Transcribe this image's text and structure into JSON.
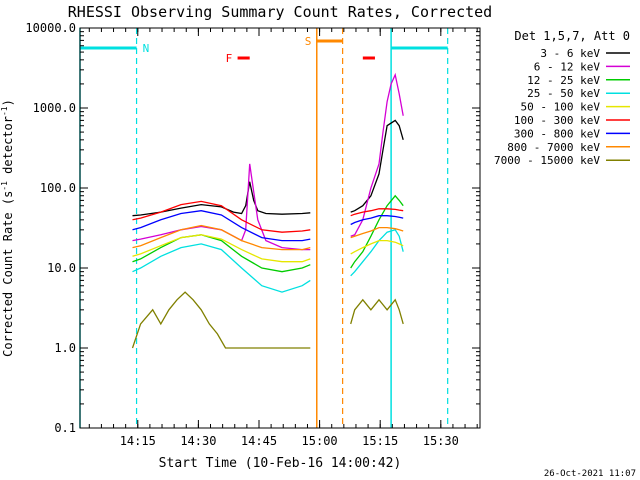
{
  "chart_data": {
    "type": "line",
    "title": "RHESSI Observing Summary Count Rates, Corrected",
    "xlabel": "Start Time (10-Feb-16 14:00:42)",
    "ylabel_main": "Corrected Count Rate (s",
    "ylabel_sup": "-1",
    "ylabel_tail": " detector",
    "ylabel_end": ")",
    "y_scale": "log",
    "ylim": [
      0.1,
      10000
    ],
    "xlim_minutes": [
      0,
      99
    ],
    "x_ticks": [
      {
        "label": "14:15",
        "min": 14.3
      },
      {
        "label": "14:30",
        "min": 29.3
      },
      {
        "label": "14:45",
        "min": 44.3
      },
      {
        "label": "15:00",
        "min": 59.3
      },
      {
        "label": "15:15",
        "min": 74.3
      },
      {
        "label": "15:30",
        "min": 89.3
      }
    ],
    "y_ticks": [
      {
        "label": "10000.0",
        "value": 10000
      },
      {
        "label": "1000.0",
        "value": 1000
      },
      {
        "label": "100.0",
        "value": 100
      },
      {
        "label": "10.0",
        "value": 10
      },
      {
        "label": "1.0",
        "value": 1
      },
      {
        "label": "0.1",
        "value": 0.1
      }
    ],
    "legend_header": "Det 1,5,7, Att 0",
    "legend_position": "right",
    "footer_date": "26-Oct-2021 11:07",
    "series": [
      {
        "name": "3 - 6 keV",
        "color": "#000000",
        "x": [
          13,
          15,
          20,
          25,
          30,
          35,
          38,
          40,
          41,
          42,
          43,
          44,
          46,
          50,
          55,
          57
        ],
        "y": [
          45,
          46,
          50,
          56,
          62,
          58,
          50,
          48,
          60,
          120,
          70,
          52,
          48,
          47,
          48,
          49
        ],
        "x2": [
          67,
          68,
          70,
          72,
          74,
          75,
          76,
          78,
          79,
          80
        ],
        "y2": [
          50,
          52,
          60,
          80,
          150,
          300,
          600,
          700,
          600,
          400
        ]
      },
      {
        "name": "6 - 12 keV",
        "color": "#d400d4",
        "x": [
          13,
          15,
          20,
          25,
          30,
          35,
          38,
          40,
          41,
          42,
          43,
          44,
          46,
          50,
          55,
          57
        ],
        "y": [
          22,
          23,
          26,
          30,
          33,
          30,
          25,
          22,
          30,
          200,
          90,
          40,
          22,
          18,
          17,
          17
        ],
        "x2": [
          67,
          68,
          70,
          72,
          74,
          75,
          76,
          77,
          78,
          79,
          80
        ],
        "y2": [
          25,
          26,
          40,
          100,
          200,
          500,
          1200,
          2000,
          2600,
          1500,
          800
        ]
      },
      {
        "name": "12 - 25 keV",
        "color": "#00cc00",
        "x": [
          13,
          15,
          20,
          25,
          30,
          35,
          40,
          45,
          50,
          55,
          57
        ],
        "y": [
          12,
          13,
          18,
          24,
          26,
          22,
          14,
          10,
          9,
          10,
          11
        ],
        "x2": [
          67,
          68,
          70,
          72,
          74,
          76,
          78,
          79,
          80
        ],
        "y2": [
          10,
          12,
          16,
          25,
          40,
          60,
          80,
          70,
          60
        ]
      },
      {
        "name": "25 - 50 keV",
        "color": "#00e0e0",
        "x": [
          13,
          15,
          20,
          25,
          30,
          35,
          40,
          45,
          50,
          55,
          57
        ],
        "y": [
          9,
          10,
          14,
          18,
          20,
          17,
          10,
          6,
          5,
          6,
          7
        ],
        "x2": [
          67,
          68,
          70,
          72,
          74,
          76,
          78,
          79,
          80
        ],
        "y2": [
          8,
          9,
          12,
          16,
          22,
          28,
          30,
          25,
          16
        ]
      },
      {
        "name": "50 - 100 keV",
        "color": "#e6e600",
        "x": [
          13,
          15,
          20,
          25,
          30,
          35,
          40,
          45,
          50,
          55,
          57
        ],
        "y": [
          14,
          15,
          19,
          24,
          26,
          23,
          17,
          13,
          12,
          12,
          13
        ],
        "x2": [
          67,
          68,
          70,
          72,
          74,
          76,
          78,
          79,
          80
        ],
        "y2": [
          15,
          16,
          18,
          20,
          22,
          22,
          21,
          20,
          19
        ]
      },
      {
        "name": "100 - 300 keV",
        "color": "#ff0000",
        "x": [
          13,
          15,
          20,
          25,
          30,
          35,
          40,
          45,
          50,
          55,
          57
        ],
        "y": [
          40,
          42,
          50,
          62,
          68,
          60,
          40,
          30,
          28,
          29,
          30
        ],
        "x2": [
          67,
          68,
          70,
          72,
          74,
          76,
          78,
          79,
          80
        ],
        "y2": [
          45,
          47,
          50,
          52,
          55,
          55,
          54,
          53,
          52
        ]
      },
      {
        "name": "300 - 800 keV",
        "color": "#0000ff",
        "x": [
          13,
          15,
          20,
          25,
          30,
          35,
          40,
          45,
          50,
          55,
          57
        ],
        "y": [
          30,
          32,
          40,
          48,
          52,
          46,
          32,
          24,
          22,
          22,
          23
        ],
        "x2": [
          67,
          68,
          70,
          72,
          74,
          76,
          78,
          79,
          80
        ],
        "y2": [
          35,
          37,
          40,
          42,
          45,
          45,
          44,
          43,
          42
        ]
      },
      {
        "name": "800 - 7000 keV",
        "color": "#ff8800",
        "x": [
          13,
          15,
          20,
          25,
          30,
          35,
          40,
          45,
          50,
          55,
          57
        ],
        "y": [
          18,
          19,
          24,
          30,
          34,
          30,
          22,
          18,
          17,
          17,
          18
        ],
        "x2": [
          67,
          68,
          70,
          72,
          74,
          76,
          78,
          79,
          80
        ],
        "y2": [
          24,
          25,
          27,
          29,
          32,
          32,
          31,
          30,
          29
        ]
      },
      {
        "name": "7000 - 15000 keV",
        "color": "#808000",
        "x": [
          13,
          15,
          18,
          20,
          22,
          24,
          26,
          28,
          30,
          32,
          34,
          36,
          38,
          40,
          45,
          50,
          55,
          57
        ],
        "y": [
          1,
          2,
          3,
          2,
          3,
          4,
          5,
          4,
          3,
          2,
          1.5,
          1,
          1,
          1,
          1,
          1,
          1,
          1
        ],
        "x2": [
          67,
          68,
          70,
          72,
          74,
          76,
          78,
          79,
          80
        ],
        "y2": [
          2,
          3,
          4,
          3,
          4,
          3,
          4,
          3,
          2
        ]
      }
    ],
    "annotations": {
      "night_label": "N",
      "saa_label": "S",
      "flare_label": "F",
      "night_bars": [
        [
          0,
          14
        ],
        [
          77,
          91
        ]
      ],
      "saa_bar": [
        58.6,
        65
      ],
      "flare_bars": [
        [
          39,
          42
        ],
        [
          70,
          73
        ]
      ],
      "night_dashed": [
        14,
        91
      ],
      "night_solid": [
        0,
        77
      ],
      "saa_solid": 58.6,
      "saa_dashed": 65
    }
  }
}
